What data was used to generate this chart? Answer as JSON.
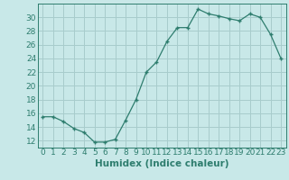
{
  "x": [
    0,
    1,
    2,
    3,
    4,
    5,
    6,
    7,
    8,
    9,
    10,
    11,
    12,
    13,
    14,
    15,
    16,
    17,
    18,
    19,
    20,
    21,
    22,
    23
  ],
  "y": [
    15.5,
    15.5,
    14.8,
    13.8,
    13.2,
    11.8,
    11.8,
    12.2,
    15.0,
    18.0,
    22.0,
    23.5,
    26.5,
    28.5,
    28.5,
    31.2,
    30.5,
    30.2,
    29.8,
    29.5,
    30.5,
    30.0,
    27.5,
    24.0
  ],
  "line_color": "#2e7d6e",
  "marker": "+",
  "bg_color": "#c8e8e8",
  "grid_color": "#a8cccc",
  "xlabel": "Humidex (Indice chaleur)",
  "ylim": [
    11,
    32
  ],
  "xlim": [
    -0.5,
    23.5
  ],
  "yticks": [
    12,
    14,
    16,
    18,
    20,
    22,
    24,
    26,
    28,
    30
  ],
  "xticks": [
    0,
    1,
    2,
    3,
    4,
    5,
    6,
    7,
    8,
    9,
    10,
    11,
    12,
    13,
    14,
    15,
    16,
    17,
    18,
    19,
    20,
    21,
    22,
    23
  ],
  "tick_color": "#2e7d6e",
  "tick_fontsize": 6.5,
  "xlabel_fontsize": 7.5
}
